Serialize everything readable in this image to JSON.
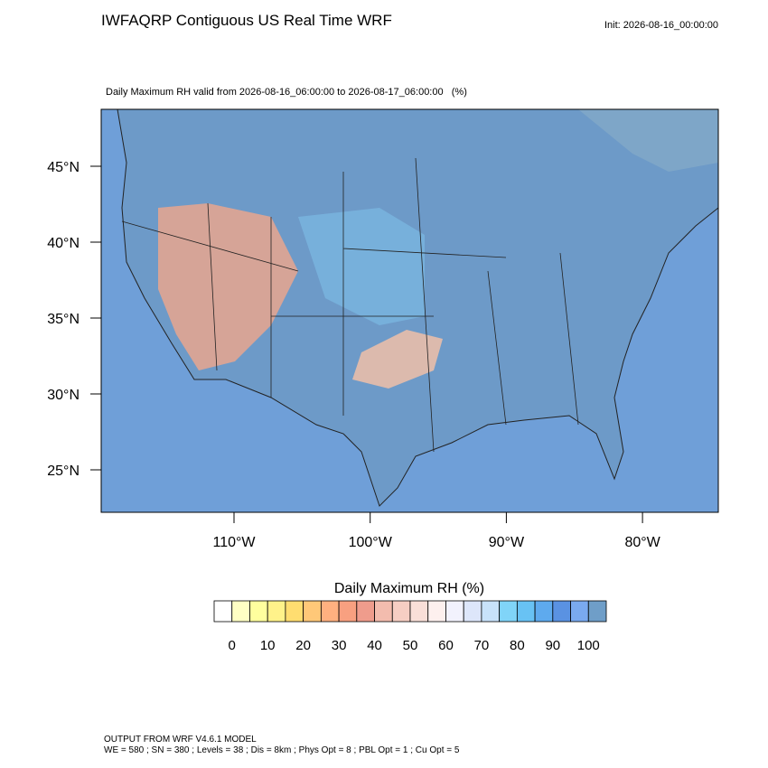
{
  "header": {
    "title": "IWFAQRP Contiguous US Real Time WRF",
    "init": "Init: 2026-08-16_00:00:00",
    "subtitle": "Daily Maximum RH valid from 2026-08-16_06:00:00 to 2026-08-17_06:00:00   (%)"
  },
  "map": {
    "lat_labels": [
      "45°N",
      "40°N",
      "35°N",
      "30°N",
      "25°N"
    ],
    "lon_labels": [
      "110°W",
      "100°W",
      "90°W",
      "80°W"
    ]
  },
  "colorbar": {
    "title": "Daily Maximum RH  (%)",
    "labels": [
      "0",
      "10",
      "20",
      "30",
      "40",
      "50",
      "60",
      "70",
      "80",
      "90",
      "100"
    ],
    "colors": [
      "#ffffff",
      "#ffffc4",
      "#ffff9e",
      "#fff28a",
      "#ffdd70",
      "#ffc878",
      "#ffb080",
      "#f8a080",
      "#ef9c8c",
      "#f3bcae",
      "#f6cec3",
      "#f9dfd8",
      "#fdf0ee",
      "#f2f2fd",
      "#dde6fa",
      "#c8e2fa",
      "#80d4f8",
      "#68c2f4",
      "#5eaaee",
      "#5a92e2",
      "#7aaaf0",
      "#6f9ec8"
    ]
  },
  "footer": {
    "line1": "OUTPUT FROM WRF V4.6.1 MODEL",
    "line2": "WE = 580 ; SN = 380 ; Levels = 38 ; Dis = 8km ; Phys Opt = 8 ; PBL Opt = 1 ; Cu Opt = 5"
  }
}
